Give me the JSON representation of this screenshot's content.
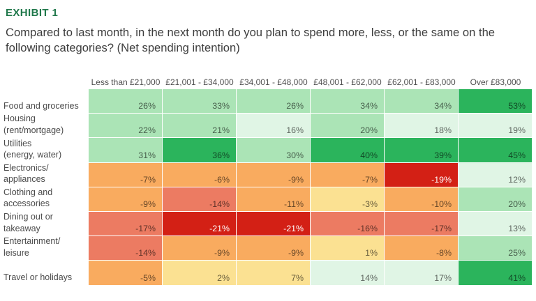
{
  "exhibit_label": "EXHIBIT 1",
  "question": "Compared to last month, in the next month do you plan to spend more, less, or the same on the following categories? (Net spending intention)",
  "colors": {
    "exhibit_label_green": "#20784b",
    "question_text": "#3d3d3d",
    "table_text": "#4f4f4f",
    "grid_line": "#ffffff"
  },
  "palette": {
    "g3": "#2bb45c",
    "g2": "#abe4b6",
    "g1": "#e0f5e5",
    "y": "#fbe192",
    "o": "#f9ab5f",
    "s": "#ec7b62",
    "r": "#d32015"
  },
  "palette_legend": {
    "g3": "strong-green (highest net increase)",
    "g2": "light-green",
    "g1": "pale-green",
    "y": "pale-yellow (near zero)",
    "o": "orange (moderate net decrease)",
    "s": "salmon",
    "r": "red (largest net decrease)"
  },
  "chart_data": {
    "type": "heatmap",
    "unit": "%",
    "value_format": "signed percent, right-aligned in cell",
    "columns": [
      "Less than £21,000",
      "£21,001 - £34,000",
      "£34,001 - £48,000",
      "£48,001 - £62,000",
      "£62,001 - £83,000",
      "Over £83,000"
    ],
    "rows": [
      {
        "label_lines": [
          "Food and groceries"
        ],
        "values": [
          26,
          33,
          26,
          34,
          34,
          53
        ]
      },
      {
        "label_lines": [
          "Housing",
          "(rent/mortgage)"
        ],
        "values": [
          22,
          21,
          16,
          20,
          18,
          19
        ]
      },
      {
        "label_lines": [
          "Utilities",
          "(energy, water)"
        ],
        "values": [
          31,
          36,
          30,
          40,
          39,
          45
        ]
      },
      {
        "label_lines": [
          "Electronics/",
          "appliances"
        ],
        "values": [
          -7,
          -6,
          -9,
          -7,
          -19,
          12
        ]
      },
      {
        "label_lines": [
          "Clothing and",
          "accessories"
        ],
        "values": [
          -9,
          -14,
          -11,
          -3,
          -10,
          20
        ]
      },
      {
        "label_lines": [
          "Dining out or",
          "takeaway"
        ],
        "values": [
          -17,
          -21,
          -21,
          -16,
          -17,
          13
        ]
      },
      {
        "label_lines": [
          "Entertainment/",
          "leisure"
        ],
        "values": [
          -14,
          -9,
          -9,
          1,
          -8,
          25
        ]
      },
      {
        "label_lines": [
          "Travel or holidays"
        ],
        "values": [
          -5,
          2,
          7,
          14,
          17,
          41
        ]
      }
    ],
    "cell_colors": [
      [
        "g2",
        "g2",
        "g2",
        "g2",
        "g2",
        "g3"
      ],
      [
        "g2",
        "g2",
        "g1",
        "g2",
        "g1",
        "g1"
      ],
      [
        "g2",
        "g3",
        "g2",
        "g3",
        "g3",
        "g3"
      ],
      [
        "o",
        "o",
        "o",
        "o",
        "r",
        "g1"
      ],
      [
        "o",
        "s",
        "o",
        "y",
        "o",
        "g2"
      ],
      [
        "s",
        "r",
        "r",
        "s",
        "s",
        "g1"
      ],
      [
        "s",
        "o",
        "o",
        "y",
        "o",
        "g2"
      ],
      [
        "o",
        "y",
        "y",
        "g1",
        "g1",
        "g3"
      ]
    ],
    "white_text_color_key": "r",
    "legend_position": "none",
    "grid": "white 1px lines between cells"
  }
}
